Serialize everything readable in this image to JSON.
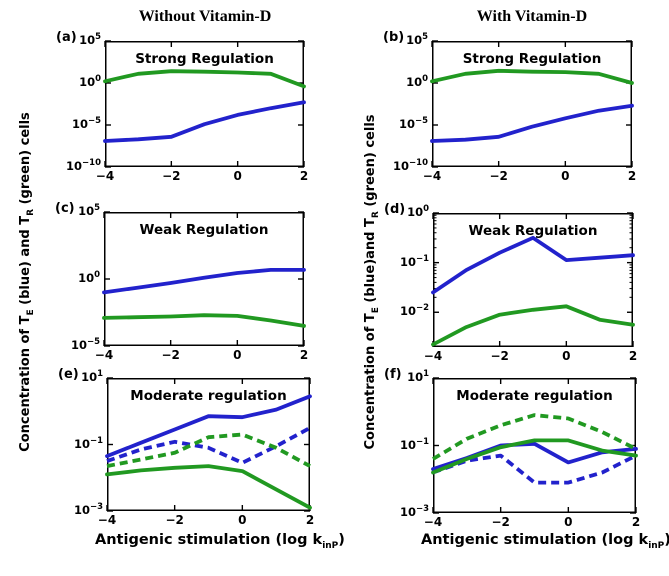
{
  "figure": {
    "column_titles": [
      "Without Vitamin-D",
      "With Vitamin-D"
    ],
    "ylabel_left_parts": [
      {
        "t": "Concentration of T"
      },
      {
        "t": "E",
        "sub": true
      },
      {
        "t": " (blue) and T"
      },
      {
        "t": "R",
        "sub": true
      },
      {
        "t": " (green) cells"
      }
    ],
    "ylabel_right_parts": [
      {
        "t": "Concentration of T"
      },
      {
        "t": "E",
        "sub": true
      },
      {
        "t": " (blue)and T"
      },
      {
        "t": "R",
        "sub": true
      },
      {
        "t": " (green) cells"
      }
    ],
    "xlabel_parts": [
      {
        "t": "Antigenic stimulation (log k"
      },
      {
        "t": "inP",
        "sub": true
      },
      {
        "t": ")"
      }
    ],
    "colors": {
      "blue": "#2222cc",
      "green": "#219921"
    }
  },
  "chart_data": {
    "type": "line",
    "grid": false,
    "legend": "none (line colors explained in y-axis label)",
    "x_axis": {
      "label": "Antigenic stimulation (log k_inP)",
      "range": [
        -4,
        2
      ],
      "ticks": [
        -4,
        -2,
        0,
        2
      ],
      "scale": "linear"
    },
    "y_axis": {
      "scale": "log",
      "label_left": "Concentration of T_E (blue) and T_R (green) cells",
      "label_right": "Concentration of T_E (blue)and T_R (green) cells"
    },
    "panels": [
      {
        "id": "a",
        "letter": "(a)",
        "title": "Strong Regulation",
        "column": "Without Vitamin-D",
        "ylim_exp": [
          -10,
          5
        ],
        "ytick_exps": [
          5,
          0,
          -5,
          -10
        ],
        "xticks": [
          -4,
          -2,
          0,
          2
        ],
        "minor_yticks": false,
        "series": [
          {
            "name": "T_R regulatory cells",
            "color": "green",
            "style": "solid",
            "x": [
              -4,
              -3,
              -2,
              -1,
              0,
              1,
              2
            ],
            "log10_y": [
              0.2,
              1.1,
              1.4,
              1.35,
              1.25,
              1.1,
              -0.4
            ]
          },
          {
            "name": "T_E effector cells",
            "color": "blue",
            "style": "solid",
            "x": [
              -4,
              -3,
              -2,
              -1,
              0,
              1,
              2
            ],
            "log10_y": [
              -6.9,
              -6.7,
              -6.4,
              -4.9,
              -3.8,
              -3.0,
              -2.3
            ]
          }
        ]
      },
      {
        "id": "b",
        "letter": "(b)",
        "title": "Strong Regulation",
        "column": "With Vitamin-D",
        "ylim_exp": [
          -10,
          5
        ],
        "ytick_exps": [
          5,
          0,
          -5,
          -10
        ],
        "xticks": [
          -4,
          -2,
          0,
          2
        ],
        "minor_yticks": false,
        "series": [
          {
            "name": "T_R regulatory cells",
            "color": "green",
            "style": "solid",
            "x": [
              -4,
              -3,
              -2,
              -1,
              0,
              1,
              2
            ],
            "log10_y": [
              0.2,
              1.1,
              1.45,
              1.35,
              1.3,
              1.1,
              0.0
            ]
          },
          {
            "name": "T_E effector cells",
            "color": "blue",
            "style": "solid",
            "x": [
              -4,
              -3,
              -2,
              -1,
              0,
              1,
              2
            ],
            "log10_y": [
              -6.9,
              -6.75,
              -6.4,
              -5.2,
              -4.2,
              -3.3,
              -2.7
            ]
          }
        ]
      },
      {
        "id": "c",
        "letter": "(c)",
        "title": "Weak Regulation",
        "column": "Without Vitamin-D",
        "ylim_exp": [
          -5,
          5
        ],
        "ytick_exps": [
          5,
          0,
          -5
        ],
        "xticks": [
          -4,
          -2,
          0,
          2
        ],
        "minor_yticks": false,
        "series": [
          {
            "name": "T_E effector cells",
            "color": "blue",
            "style": "solid",
            "x": [
              -4,
              -3,
              -2,
              -1,
              0,
              1,
              2
            ],
            "log10_y": [
              -1.0,
              -0.65,
              -0.3,
              0.1,
              0.45,
              0.68,
              0.68
            ]
          },
          {
            "name": "T_R regulatory cells",
            "color": "green",
            "style": "solid",
            "x": [
              -4,
              -3,
              -2,
              -1,
              0,
              1,
              2
            ],
            "log10_y": [
              -2.9,
              -2.85,
              -2.8,
              -2.7,
              -2.75,
              -3.1,
              -3.5
            ]
          }
        ]
      },
      {
        "id": "d",
        "letter": "(d)",
        "title": "Weak Regulation",
        "column": "With Vitamin-D",
        "ylim_exp": [
          -2.7,
          0
        ],
        "ytick_exps": [
          0,
          -1,
          -2
        ],
        "xticks": [
          -4,
          -2,
          0,
          2
        ],
        "minor_yticks": true,
        "series": [
          {
            "name": "T_E effector cells",
            "color": "blue",
            "style": "solid",
            "x": [
              -4,
              -3,
              -2,
              -1,
              0,
              1,
              2
            ],
            "log10_y": [
              -1.6,
              -1.15,
              -0.8,
              -0.5,
              -0.95,
              -0.9,
              -0.85
            ]
          },
          {
            "name": "T_R regulatory cells",
            "color": "green",
            "style": "solid",
            "x": [
              -4,
              -3,
              -2,
              -1,
              0,
              1,
              2
            ],
            "log10_y": [
              -2.65,
              -2.3,
              -2.05,
              -1.95,
              -1.88,
              -2.15,
              -2.25
            ]
          }
        ]
      },
      {
        "id": "e",
        "letter": "(e)",
        "title": "Moderate regulation",
        "column": "Without Vitamin-D",
        "ylim_exp": [
          -3,
          1
        ],
        "ytick_exps": [
          1,
          -1,
          -3
        ],
        "xticks": [
          -4,
          -2,
          0,
          2
        ],
        "minor_yticks": false,
        "series": [
          {
            "name": "T_E effector cells (case 1)",
            "color": "blue",
            "style": "solid",
            "x": [
              -4,
              -3,
              -2,
              -1,
              0,
              1,
              2
            ],
            "log10_y": [
              -1.35,
              -0.95,
              -0.55,
              -0.15,
              -0.18,
              0.05,
              0.45
            ]
          },
          {
            "name": "T_E effector cells (case 2)",
            "color": "blue",
            "style": "dashed",
            "x": [
              -4,
              -3,
              -2,
              -1,
              0,
              1,
              2
            ],
            "log10_y": [
              -1.5,
              -1.15,
              -0.92,
              -1.1,
              -1.55,
              -1.05,
              -0.5
            ]
          },
          {
            "name": "T_R regulatory cells (case 1)",
            "color": "green",
            "style": "solid",
            "x": [
              -4,
              -3,
              -2,
              -1,
              0,
              1,
              2
            ],
            "log10_y": [
              -1.9,
              -1.78,
              -1.7,
              -1.65,
              -1.8,
              -2.35,
              -2.9
            ]
          },
          {
            "name": "T_R regulatory cells (case 2)",
            "color": "green",
            "style": "dashed",
            "x": [
              -4,
              -3,
              -2,
              -1,
              0,
              1,
              2
            ],
            "log10_y": [
              -1.65,
              -1.45,
              -1.25,
              -0.78,
              -0.7,
              -1.1,
              -1.65
            ]
          }
        ]
      },
      {
        "id": "f",
        "letter": "(f)",
        "title": "Moderate regulation",
        "column": "With Vitamin-D",
        "ylim_exp": [
          -3,
          1
        ],
        "ytick_exps": [
          1,
          -1,
          -3
        ],
        "xticks": [
          -4,
          -2,
          0,
          2
        ],
        "minor_yticks": false,
        "series": [
          {
            "name": "T_E effector cells (case 1)",
            "color": "blue",
            "style": "solid",
            "x": [
              -4,
              -3,
              -2,
              -1,
              0,
              1,
              2
            ],
            "log10_y": [
              -1.7,
              -1.37,
              -1.0,
              -0.95,
              -1.5,
              -1.2,
              -1.1
            ]
          },
          {
            "name": "T_E effector cells (case 2)",
            "color": "blue",
            "style": "dashed",
            "x": [
              -4,
              -3,
              -2,
              -1,
              0,
              1,
              2
            ],
            "log10_y": [
              -1.8,
              -1.45,
              -1.3,
              -2.1,
              -2.1,
              -1.8,
              -1.3
            ]
          },
          {
            "name": "T_R regulatory cells (case 1)",
            "color": "green",
            "style": "solid",
            "x": [
              -4,
              -3,
              -2,
              -1,
              0,
              1,
              2
            ],
            "log10_y": [
              -1.8,
              -1.4,
              -1.05,
              -0.85,
              -0.85,
              -1.15,
              -1.3
            ]
          },
          {
            "name": "T_R regulatory cells (case 2)",
            "color": "green",
            "style": "dashed",
            "x": [
              -4,
              -3,
              -2,
              -1,
              0,
              1,
              2
            ],
            "log10_y": [
              -1.4,
              -0.8,
              -0.4,
              -0.1,
              -0.2,
              -0.6,
              -1.1
            ]
          }
        ]
      }
    ]
  }
}
